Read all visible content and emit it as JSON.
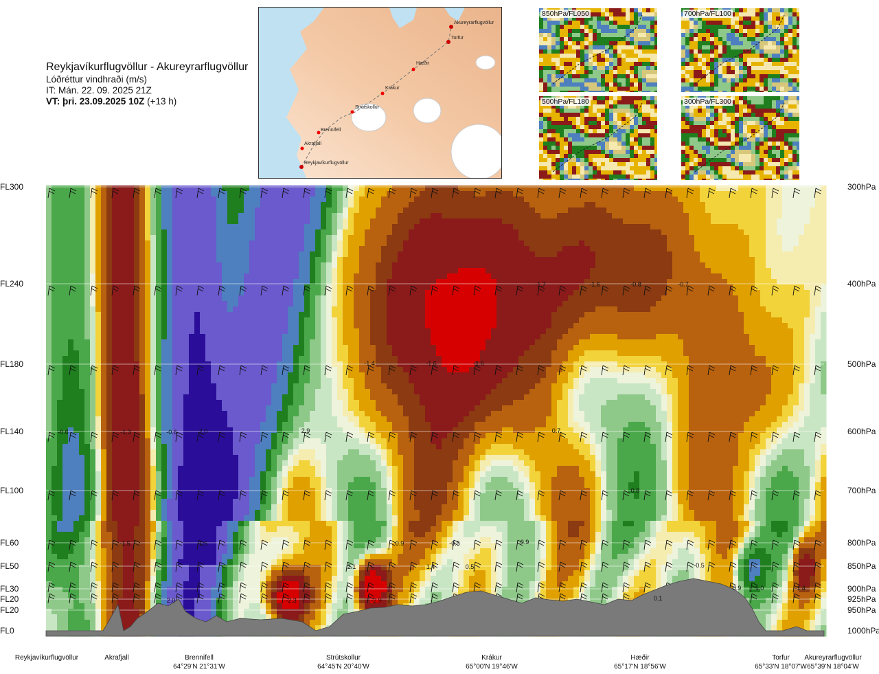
{
  "header": {
    "route": "Reykjavíkurflugvöllur - Akureyrarflugvöllur",
    "parameter": "Lóðréttur vindhraði (m/s)",
    "issue": "IT: Mán. 22. 09. 2025 21Z",
    "valid_bold": "VT: þri. 23.09.2025 10Z",
    "valid_offset": " (+13 h)"
  },
  "map": {
    "stations": [
      "Akureyrarflugvöllur",
      "Torfur",
      "Hæðir",
      "Krákur",
      "Strútskollur",
      "Brennifell",
      "Akrafjall",
      "Reykjavíkurflugvöllur"
    ]
  },
  "thumbnails": [
    {
      "label": "850hPa/FL050"
    },
    {
      "label": "700hPa/FL100"
    },
    {
      "label": "500hPa/FL180"
    },
    {
      "label": "300hPa/FL300"
    }
  ],
  "colors": {
    "strong_down": "#8b1a1a",
    "down": "#e0a000",
    "neutral": "#f3f0c8",
    "up": "#2e8b2e",
    "strong_up": "#6a5acd",
    "terrain": "#7a7a7a"
  },
  "chart_data": {
    "type": "heatmap",
    "description_levels": [
      {
        "fl": "FL300",
        "p": "300hPa"
      },
      {
        "fl": "FL240",
        "p": "400hPa"
      },
      {
        "fl": "FL180",
        "p": "500hPa"
      },
      {
        "fl": "FL140",
        "p": "600hPa"
      },
      {
        "fl": "FL100",
        "p": "700hPa"
      },
      {
        "fl": "FL60",
        "p": "800hPa"
      },
      {
        "fl": "FL50",
        "p": "850hPa"
      },
      {
        "fl": "FL30",
        "p": "900hPa"
      },
      {
        "fl": "FL20",
        "p": "925hPa"
      },
      {
        "fl": "FL20",
        "p": "950hPa"
      },
      {
        "fl": "FL0",
        "p": "1000hPa"
      }
    ],
    "locations": [
      {
        "name": "Reykjavíkurflugvöllur",
        "coord": ""
      },
      {
        "name": "Akrafjall",
        "coord": ""
      },
      {
        "name": "Brennifell",
        "coord": "64°29'N 21°31'W"
      },
      {
        "name": "Strútskollur",
        "coord": "64°45'N 20°40'W"
      },
      {
        "name": "Krákur",
        "coord": "65°00'N 19°46'W"
      },
      {
        "name": "Hæðir",
        "coord": "65°17'N 18°56'W"
      },
      {
        "name": "Torfur",
        "coord": "65°33'N 18°07'W"
      },
      {
        "name": "Akureyrarflugvöllur",
        "coord": "65°39'N 18°04'W"
      }
    ],
    "value_labels": [
      "-0.6",
      "-1.3",
      "-0.6",
      "2.0",
      "2.9",
      "-1.4",
      "-1.6",
      "-1.6",
      "-1.7",
      "-1.6",
      "-0.8",
      "-0.7",
      "0.7",
      "0.8",
      "-1.5",
      "1.6",
      "2.1",
      "1.4",
      "0.9",
      "-0.5",
      "0.5",
      "0.9",
      "-0.5",
      "2.0",
      "-2.3",
      "-2.9",
      "0.1",
      "0.9",
      "1.0",
      "-1.4"
    ]
  }
}
